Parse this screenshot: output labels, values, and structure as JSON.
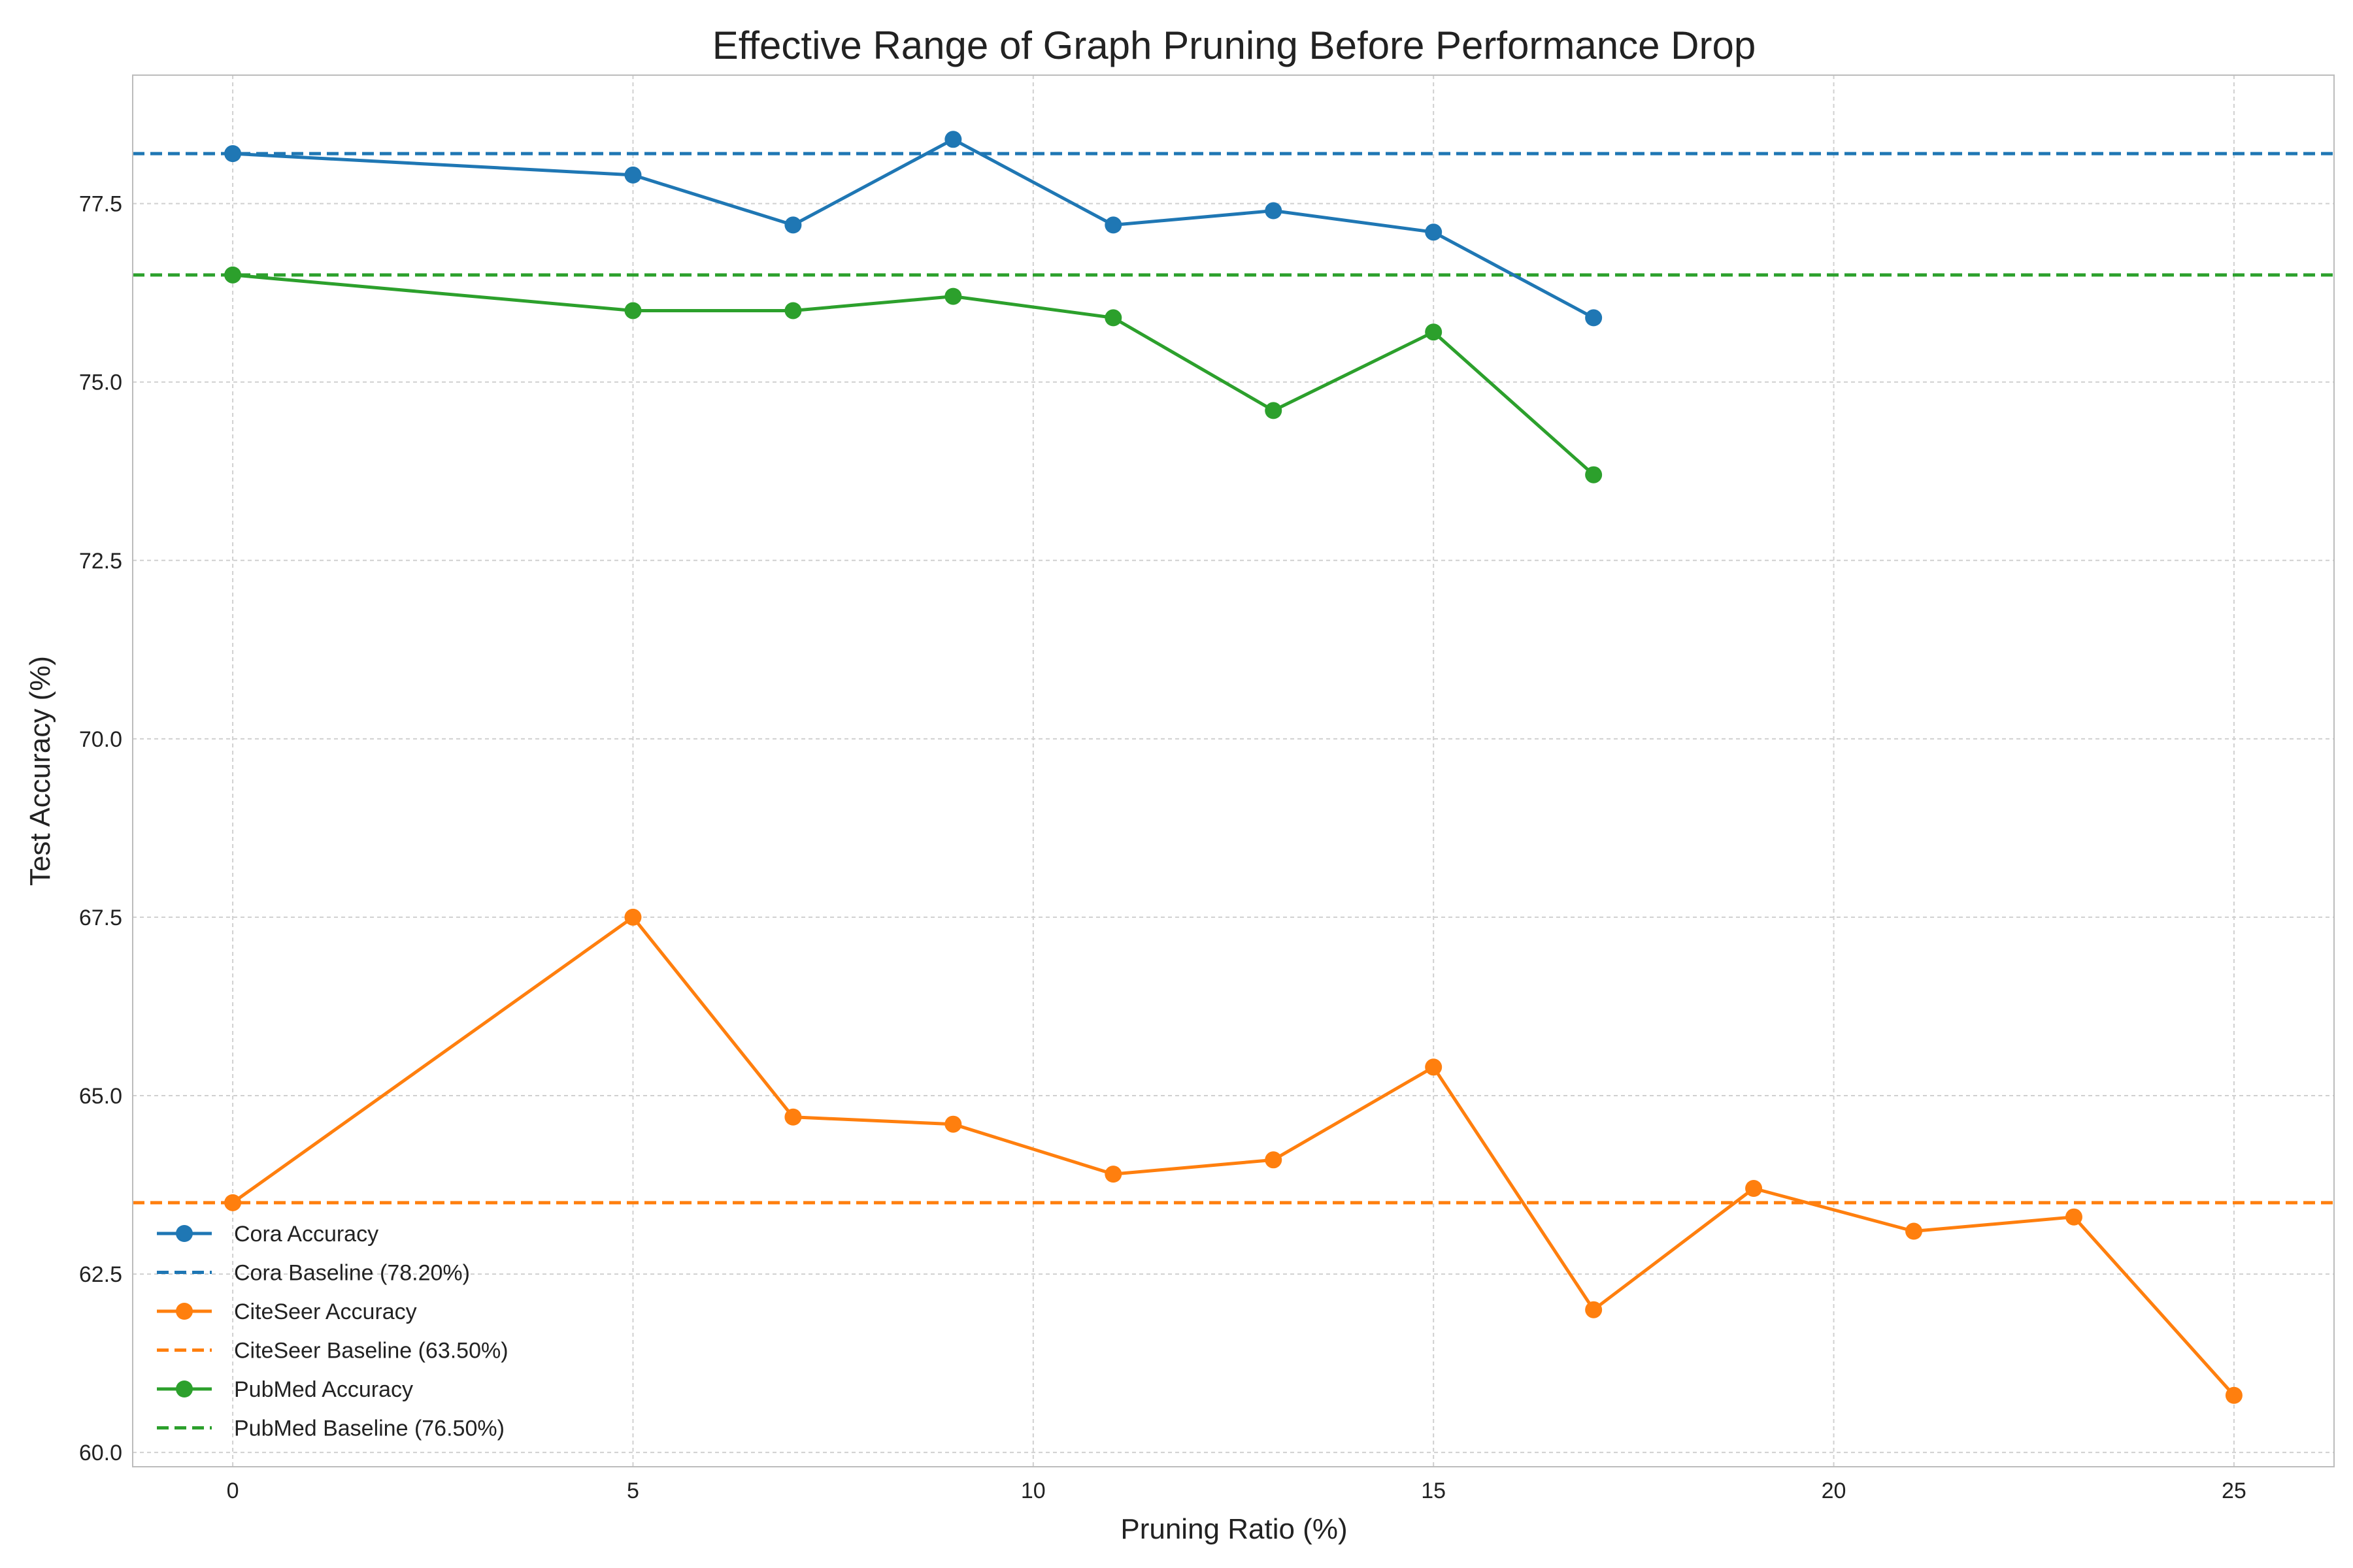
{
  "chart_data": {
    "type": "line",
    "title": "Effective Range of Graph Pruning Before Performance Drop",
    "xlabel": "Pruning Ratio (%)",
    "ylabel": "Test Accuracy (%)",
    "xlim": [
      -1.25,
      26.25
    ],
    "ylim": [
      59.8,
      79.3
    ],
    "xticks": [
      0,
      5,
      10,
      15,
      20,
      25
    ],
    "yticks": [
      60.0,
      62.5,
      65.0,
      67.5,
      70.0,
      72.5,
      75.0,
      77.5
    ],
    "grid": true,
    "legend_position": "lower-left",
    "series": [
      {
        "name": "Cora Accuracy",
        "color": "#1f77b4",
        "x": [
          0,
          5,
          7,
          9,
          11,
          13,
          15,
          17
        ],
        "y": [
          78.2,
          77.9,
          77.2,
          78.4,
          77.2,
          77.4,
          77.1,
          75.9
        ]
      },
      {
        "name": "CiteSeer Accuracy",
        "color": "#ff7f0e",
        "x": [
          0,
          5,
          7,
          9,
          11,
          13,
          15,
          17,
          19,
          21,
          23,
          25
        ],
        "y": [
          63.5,
          67.5,
          64.7,
          64.6,
          63.9,
          64.1,
          65.4,
          62.0,
          63.7,
          63.1,
          63.3,
          60.8
        ]
      },
      {
        "name": "PubMed Accuracy",
        "color": "#2ca02c",
        "x": [
          0,
          5,
          7,
          9,
          11,
          13,
          15,
          17
        ],
        "y": [
          76.5,
          76.0,
          76.0,
          76.2,
          75.9,
          74.6,
          75.7,
          73.7
        ]
      }
    ],
    "baselines": [
      {
        "name": "Cora Baseline (78.20%)",
        "color": "#1f77b4",
        "value": 78.2
      },
      {
        "name": "CiteSeer Baseline (63.50%)",
        "color": "#ff7f0e",
        "value": 63.5
      },
      {
        "name": "PubMed Baseline (76.50%)",
        "color": "#2ca02c",
        "value": 76.5
      }
    ],
    "legend": [
      {
        "label": "Cora Accuracy",
        "color": "#1f77b4",
        "style": "line-marker"
      },
      {
        "label": "Cora Baseline (78.20%)",
        "color": "#1f77b4",
        "style": "dashed"
      },
      {
        "label": "CiteSeer Accuracy",
        "color": "#ff7f0e",
        "style": "line-marker"
      },
      {
        "label": "CiteSeer Baseline (63.50%)",
        "color": "#ff7f0e",
        "style": "dashed"
      },
      {
        "label": "PubMed Accuracy",
        "color": "#2ca02c",
        "style": "line-marker"
      },
      {
        "label": "PubMed Baseline (76.50%)",
        "color": "#2ca02c",
        "style": "dashed"
      }
    ]
  }
}
